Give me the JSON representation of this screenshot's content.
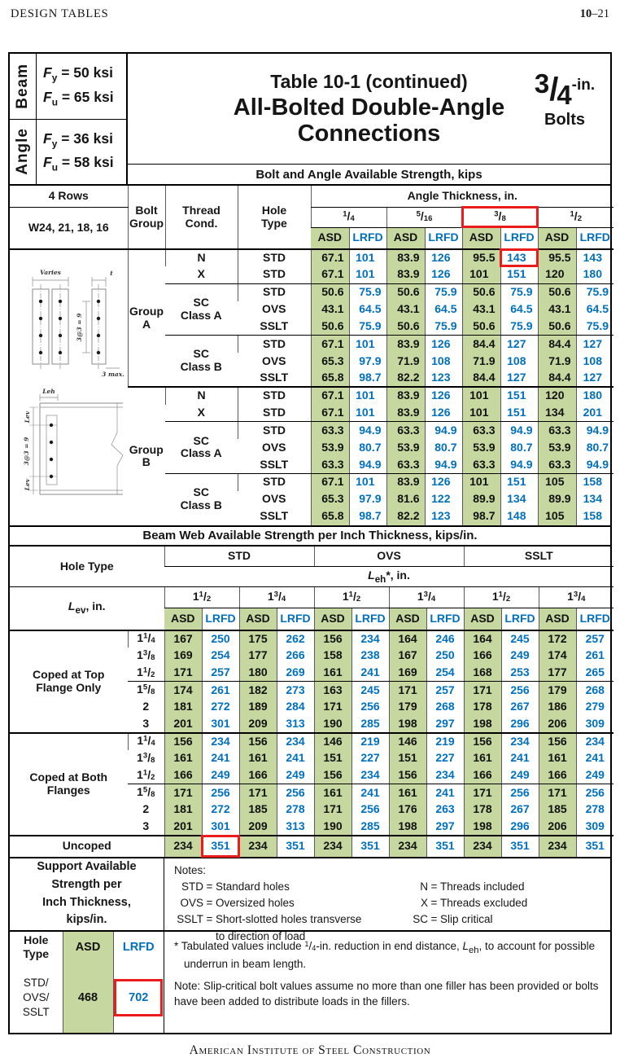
{
  "page": {
    "header_left": "DESIGN TABLES",
    "number_vol": "10",
    "number_rest": "–21",
    "footer": "American Institute of Steel Construction"
  },
  "colors": {
    "asd_green": "#c6d8a0",
    "lrfd_blue": "#0070bd",
    "highlight_red": "#ea1c1c"
  },
  "materials": {
    "beam": {
      "label": "Beam",
      "rows": [
        {
          "sym": "F",
          "sub": "y",
          "eq": "= 50 ksi"
        },
        {
          "sym": "F",
          "sub": "u",
          "eq": "= 65 ksi"
        }
      ]
    },
    "angle": {
      "label": "Angle",
      "rows": [
        {
          "sym": "F",
          "sub": "y",
          "eq": "= 36 ksi"
        },
        {
          "sym": "F",
          "sub": "u",
          "eq": "= 58 ksi"
        }
      ]
    }
  },
  "title": {
    "line1": "Table 10-1 (continued)",
    "line2": "All-Bolted Double-Angle",
    "line3": "Connections"
  },
  "bolt_size": {
    "num": "3",
    "den": "4",
    "unit": "-in.",
    "word": "Bolts"
  },
  "labels": {
    "asd": "ASD",
    "lrfd": "LRFD"
  },
  "bolt_table": {
    "banner": "Bolt and Angle Available Strength, kips",
    "rows_label": "4 Rows",
    "beam_sizes": "W24, 21, 18, 16",
    "bolt_group_label": [
      "Bolt",
      "Group"
    ],
    "thread_label": [
      "Thread",
      "Cond."
    ],
    "hole_label": [
      "Hole",
      "Type"
    ],
    "angle_thickness_label": "Angle Thickness, in.",
    "columns": [
      {
        "f": "1/4"
      },
      {
        "f": "5/16"
      },
      {
        "f": "3/8",
        "hl": true
      },
      {
        "f": "1/2"
      }
    ],
    "groups": [
      {
        "name": [
          "Group",
          "A"
        ],
        "blocks": [
          {
            "rows": [
              {
                "thread": "N",
                "hole": "STD",
                "v": [
                  "67.1",
                  "101",
                  "83.9",
                  "126",
                  "95.5",
                  "143",
                  "95.5",
                  "143"
                ],
                "hl": 5
              },
              {
                "thread": "X",
                "hole": "STD",
                "v": [
                  "67.1",
                  "101",
                  "83.9",
                  "126",
                  "101",
                  "151",
                  "120",
                  "180"
                ]
              }
            ]
          },
          {
            "label": [
              "SC",
              "Class A"
            ],
            "rows": [
              {
                "hole": "STD",
                "v": [
                  "50.6",
                  "75.9",
                  "50.6",
                  "75.9",
                  "50.6",
                  "75.9",
                  "50.6",
                  "75.9"
                ]
              },
              {
                "hole": "OVS",
                "v": [
                  "43.1",
                  "64.5",
                  "43.1",
                  "64.5",
                  "43.1",
                  "64.5",
                  "43.1",
                  "64.5"
                ]
              },
              {
                "hole": "SSLT",
                "v": [
                  "50.6",
                  "75.9",
                  "50.6",
                  "75.9",
                  "50.6",
                  "75.9",
                  "50.6",
                  "75.9"
                ]
              }
            ]
          },
          {
            "label": [
              "SC",
              "Class B"
            ],
            "rows": [
              {
                "hole": "STD",
                "v": [
                  "67.1",
                  "101",
                  "83.9",
                  "126",
                  "84.4",
                  "127",
                  "84.4",
                  "127"
                ]
              },
              {
                "hole": "OVS",
                "v": [
                  "65.3",
                  "97.9",
                  "71.9",
                  "108",
                  "71.9",
                  "108",
                  "71.9",
                  "108"
                ]
              },
              {
                "hole": "SSLT",
                "v": [
                  "65.8",
                  "98.7",
                  "82.2",
                  "123",
                  "84.4",
                  "127",
                  "84.4",
                  "127"
                ]
              }
            ]
          }
        ]
      },
      {
        "name": [
          "Group",
          "B"
        ],
        "blocks": [
          {
            "rows": [
              {
                "thread": "N",
                "hole": "STD",
                "v": [
                  "67.1",
                  "101",
                  "83.9",
                  "126",
                  "101",
                  "151",
                  "120",
                  "180"
                ]
              },
              {
                "thread": "X",
                "hole": "STD",
                "v": [
                  "67.1",
                  "101",
                  "83.9",
                  "126",
                  "101",
                  "151",
                  "134",
                  "201"
                ]
              }
            ]
          },
          {
            "label": [
              "SC",
              "Class A"
            ],
            "rows": [
              {
                "hole": "STD",
                "v": [
                  "63.3",
                  "94.9",
                  "63.3",
                  "94.9",
                  "63.3",
                  "94.9",
                  "63.3",
                  "94.9"
                ]
              },
              {
                "hole": "OVS",
                "v": [
                  "53.9",
                  "80.7",
                  "53.9",
                  "80.7",
                  "53.9",
                  "80.7",
                  "53.9",
                  "80.7"
                ]
              },
              {
                "hole": "SSLT",
                "v": [
                  "63.3",
                  "94.9",
                  "63.3",
                  "94.9",
                  "63.3",
                  "94.9",
                  "63.3",
                  "94.9"
                ]
              }
            ]
          },
          {
            "label": [
              "SC",
              "Class B"
            ],
            "rows": [
              {
                "hole": "STD",
                "v": [
                  "67.1",
                  "101",
                  "83.9",
                  "126",
                  "101",
                  "151",
                  "105",
                  "158"
                ]
              },
              {
                "hole": "OVS",
                "v": [
                  "65.3",
                  "97.9",
                  "81.6",
                  "122",
                  "89.9",
                  "134",
                  "89.9",
                  "134"
                ]
              },
              {
                "hole": "SSLT",
                "v": [
                  "65.8",
                  "98.7",
                  "82.2",
                  "123",
                  "98.7",
                  "148",
                  "105",
                  "158"
                ]
              }
            ]
          }
        ]
      }
    ]
  },
  "web_table": {
    "banner": "Beam Web Available Strength per Inch Thickness, kips/in.",
    "hole_type_label": "Hole Type",
    "hole_types": [
      "STD",
      "OVS",
      "SSLT"
    ],
    "leh": {
      "sym": "L",
      "sub": "eh",
      "rest": "*, in."
    },
    "lev": {
      "sym": "L",
      "sub": "ev",
      "rest": ", in."
    },
    "lev_cols": [
      "1 1/2",
      "1 3/4"
    ],
    "sections": [
      {
        "label": [
          "Coped at Top",
          "Flange Only"
        ],
        "sub": [
          [
            {
              "lev": "1 1/4",
              "v": [
                "167",
                "250",
                "175",
                "262",
                "156",
                "234",
                "164",
                "246",
                "164",
                "245",
                "172",
                "257"
              ]
            },
            {
              "lev": "1 3/8",
              "v": [
                "169",
                "254",
                "177",
                "266",
                "158",
                "238",
                "167",
                "250",
                "166",
                "249",
                "174",
                "261"
              ]
            },
            {
              "lev": "1 1/2",
              "v": [
                "171",
                "257",
                "180",
                "269",
                "161",
                "241",
                "169",
                "254",
                "168",
                "253",
                "177",
                "265"
              ]
            }
          ],
          [
            {
              "lev": "1 5/8",
              "v": [
                "174",
                "261",
                "182",
                "273",
                "163",
                "245",
                "171",
                "257",
                "171",
                "256",
                "179",
                "268"
              ]
            },
            {
              "lev": "2",
              "v": [
                "181",
                "272",
                "189",
                "284",
                "171",
                "256",
                "179",
                "268",
                "178",
                "267",
                "186",
                "279"
              ]
            },
            {
              "lev": "3",
              "v": [
                "201",
                "301",
                "209",
                "313",
                "190",
                "285",
                "198",
                "297",
                "198",
                "296",
                "206",
                "309"
              ]
            }
          ]
        ]
      },
      {
        "label": [
          "Coped at Both",
          "Flanges"
        ],
        "sub": [
          [
            {
              "lev": "1 1/4",
              "v": [
                "156",
                "234",
                "156",
                "234",
                "146",
                "219",
                "146",
                "219",
                "156",
                "234",
                "156",
                "234"
              ]
            },
            {
              "lev": "1 3/8",
              "v": [
                "161",
                "241",
                "161",
                "241",
                "151",
                "227",
                "151",
                "227",
                "161",
                "241",
                "161",
                "241"
              ]
            },
            {
              "lev": "1 1/2",
              "v": [
                "166",
                "249",
                "166",
                "249",
                "156",
                "234",
                "156",
                "234",
                "166",
                "249",
                "166",
                "249"
              ]
            }
          ],
          [
            {
              "lev": "1 5/8",
              "v": [
                "171",
                "256",
                "171",
                "256",
                "161",
                "241",
                "161",
                "241",
                "171",
                "256",
                "171",
                "256"
              ]
            },
            {
              "lev": "2",
              "v": [
                "181",
                "272",
                "185",
                "278",
                "171",
                "256",
                "176",
                "263",
                "178",
                "267",
                "185",
                "278"
              ]
            },
            {
              "lev": "3",
              "v": [
                "201",
                "301",
                "209",
                "313",
                "190",
                "285",
                "198",
                "297",
                "198",
                "296",
                "206",
                "309"
              ]
            }
          ]
        ]
      }
    ],
    "uncoped": {
      "label": "Uncoped",
      "v": [
        "234",
        "351",
        "234",
        "351",
        "234",
        "351",
        "234",
        "351",
        "234",
        "351",
        "234",
        "351"
      ],
      "hl": 1
    }
  },
  "support": {
    "lines": [
      "Support Available",
      "Strength per",
      "Inch Thickness,",
      "kips/in."
    ]
  },
  "notes": {
    "title": "Notes:",
    "left": [
      {
        "a": "STD",
        "d": [
          "Standard holes"
        ]
      },
      {
        "a": "OVS",
        "d": [
          "Oversized holes"
        ]
      },
      {
        "a": "SSLT",
        "d": [
          "Short-slotted holes transverse",
          "to direction of load"
        ]
      }
    ],
    "right": [
      {
        "a": "N",
        "d": [
          "Threads included"
        ]
      },
      {
        "a": "X",
        "d": [
          "Threads excluded"
        ]
      },
      {
        "a": "SC",
        "d": [
          "Slip critical"
        ]
      }
    ]
  },
  "mini_table": {
    "hole_type_label": [
      "Hole",
      "Type"
    ],
    "asd_label": "ASD",
    "lrfd_label": "LRFD",
    "row_label": [
      "STD/",
      "OVS/",
      "SSLT"
    ],
    "asd_value": "468",
    "lrfd_value": "702",
    "lrfd_highlight": true
  },
  "footnotes": [
    {
      "seg": [
        {
          "t": "* Tabulated values include "
        },
        {
          "t": "1/4",
          "s": "frac"
        },
        {
          "t": "-in. reduction in end distance, "
        },
        {
          "t": "L",
          "s": "i"
        },
        {
          "t": "eh",
          "s": "sub"
        },
        {
          "t": ", to account for possible underrun in beam length."
        }
      ]
    },
    {
      "seg": [
        {
          "t": "Note: Slip-critical bolt values assume no more than one filler has been provided or bolts have been added to distribute loads in the fillers."
        }
      ]
    }
  ],
  "diagram": {
    "varies": "Varies",
    "t": "t",
    "spacing_top": "3@3 = 9",
    "max": "3 max.",
    "leh": "Leh",
    "lev_top": "Lev",
    "spacing_side": "3@3 = 9",
    "lev_bottom": "Lev"
  }
}
